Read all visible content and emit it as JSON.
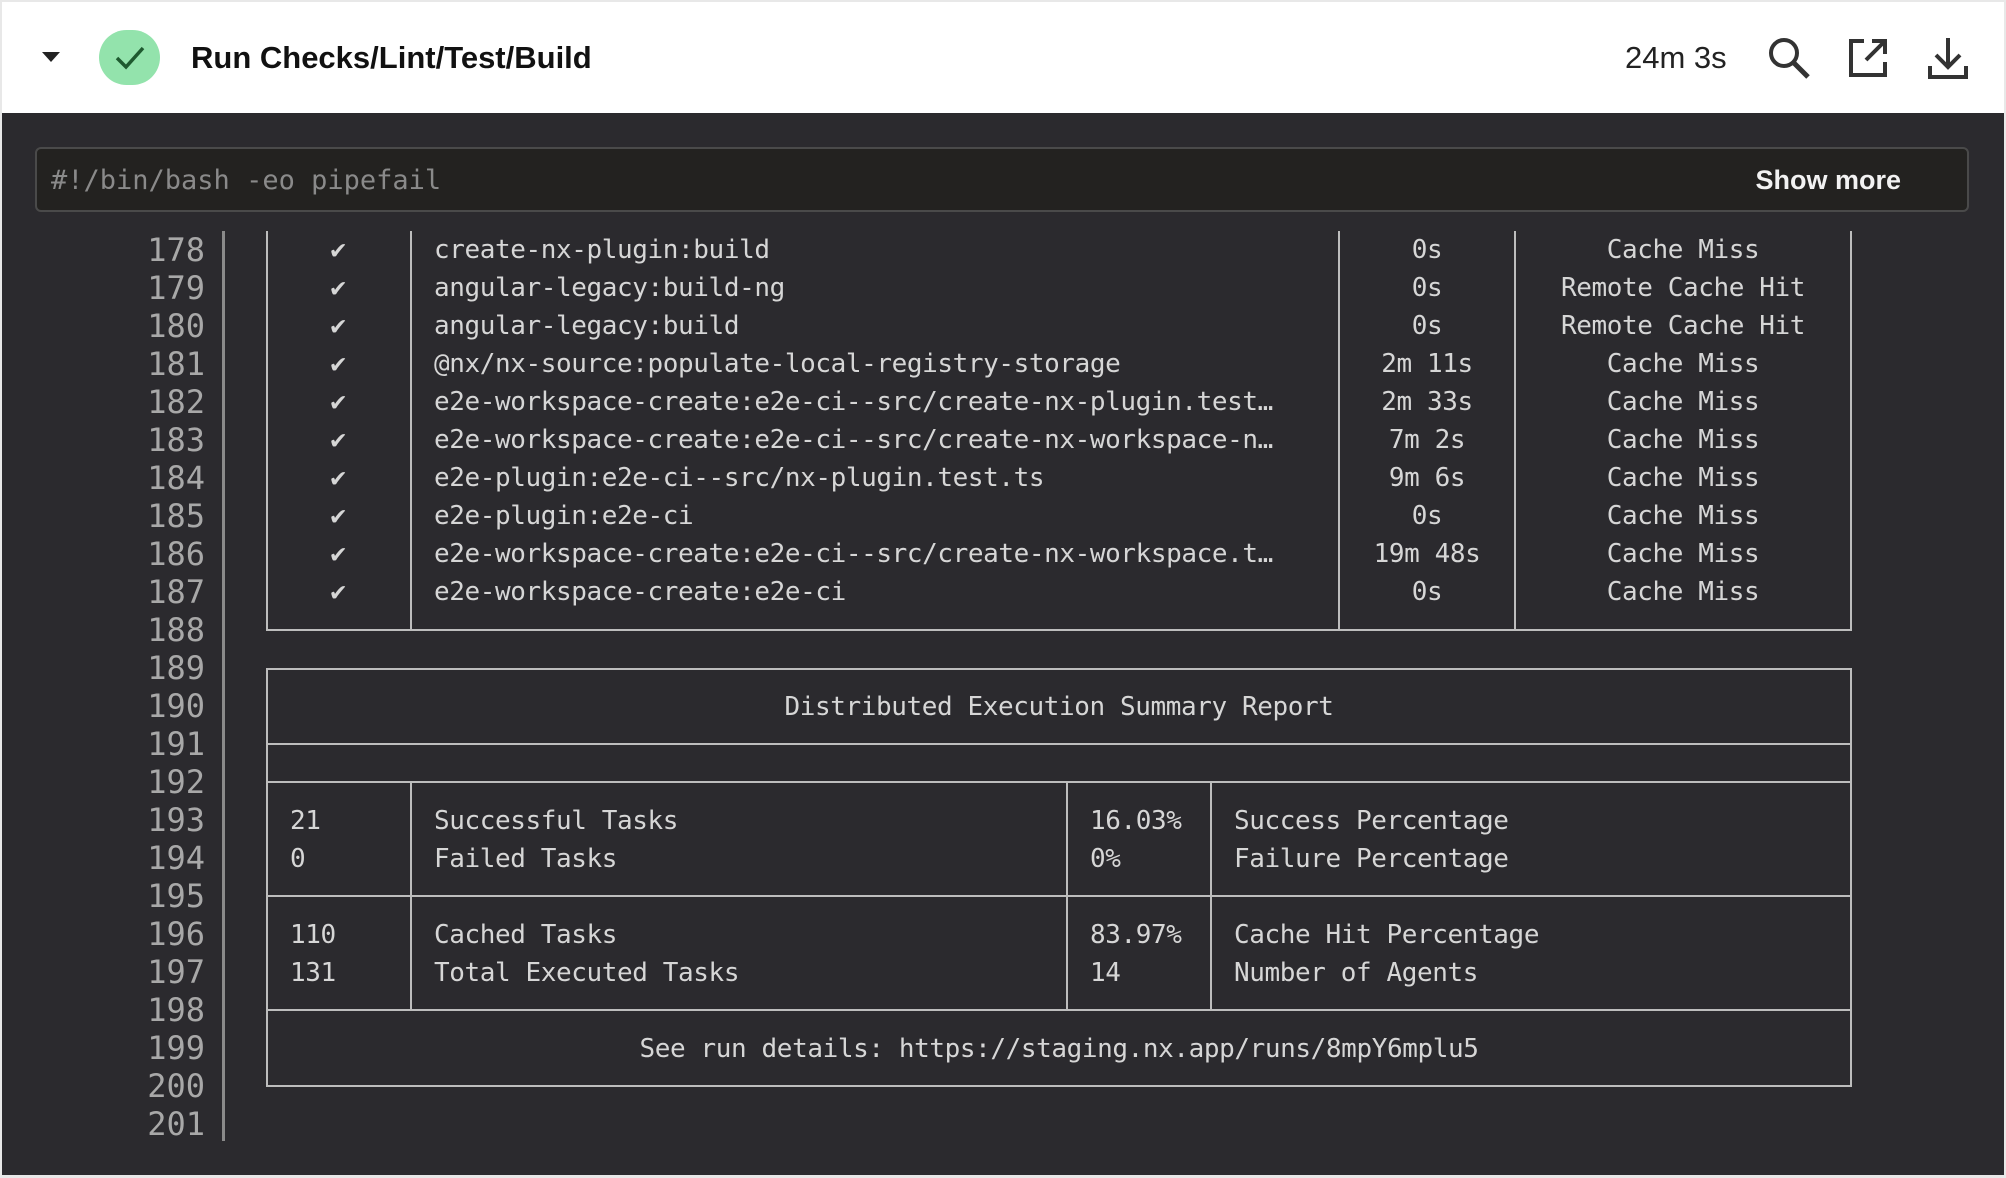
{
  "header": {
    "title": "Run Checks/Lint/Test/Build",
    "duration": "24m 3s",
    "status": "success",
    "icons": [
      "caret-down-icon",
      "check-icon",
      "search-icon",
      "external-link-icon",
      "download-icon"
    ],
    "status_color": "#93e3ac"
  },
  "command": {
    "text": "#!/bin/bash -eo pipefail",
    "show_more": "Show more"
  },
  "line_numbers": [
    "178",
    "179",
    "180",
    "181",
    "182",
    "183",
    "184",
    "185",
    "186",
    "187",
    "188",
    "189",
    "190",
    "191",
    "192",
    "193",
    "194",
    "195",
    "196",
    "197",
    "198",
    "199",
    "200",
    "201"
  ],
  "tasks": [
    {
      "check": "✔",
      "name": "create-nx-plugin:build",
      "time": "0s",
      "cache": "Cache Miss"
    },
    {
      "check": "✔",
      "name": "angular-legacy:build-ng",
      "time": "0s",
      "cache": "Remote Cache Hit"
    },
    {
      "check": "✔",
      "name": "angular-legacy:build",
      "time": "0s",
      "cache": "Remote Cache Hit"
    },
    {
      "check": "✔",
      "name": "@nx/nx-source:populate-local-registry-storage",
      "time": "2m 11s",
      "cache": "Cache Miss"
    },
    {
      "check": "✔",
      "name": "e2e-workspace-create:e2e-ci--src/create-nx-plugin.test…",
      "time": "2m 33s",
      "cache": "Cache Miss"
    },
    {
      "check": "✔",
      "name": "e2e-workspace-create:e2e-ci--src/create-nx-workspace-n…",
      "time": "7m 2s",
      "cache": "Cache Miss"
    },
    {
      "check": "✔",
      "name": "e2e-plugin:e2e-ci--src/nx-plugin.test.ts",
      "time": "9m 6s",
      "cache": "Cache Miss"
    },
    {
      "check": "✔",
      "name": "e2e-plugin:e2e-ci",
      "time": "0s",
      "cache": "Cache Miss"
    },
    {
      "check": "✔",
      "name": "e2e-workspace-create:e2e-ci--src/create-nx-workspace.t…",
      "time": "19m 48s",
      "cache": "Cache Miss"
    },
    {
      "check": "✔",
      "name": "e2e-workspace-create:e2e-ci",
      "time": "0s",
      "cache": "Cache Miss"
    }
  ],
  "summary": {
    "title": "Distributed Execution Summary Report",
    "rows": [
      {
        "count": "21",
        "label": "Successful Tasks",
        "pct": "16.03%",
        "pct_label": "Success Percentage"
      },
      {
        "count": "0",
        "label": "Failed Tasks",
        "pct": "0%",
        "pct_label": "Failure Percentage"
      },
      {
        "count": "110",
        "label": "Cached Tasks",
        "pct": "83.97%",
        "pct_label": "Cache Hit Percentage"
      },
      {
        "count": "131",
        "label": "Total Executed Tasks",
        "pct": "14",
        "pct_label": "Number of Agents"
      }
    ],
    "details": "See run details: https://staging.nx.app/runs/8mpY6mplu5"
  }
}
